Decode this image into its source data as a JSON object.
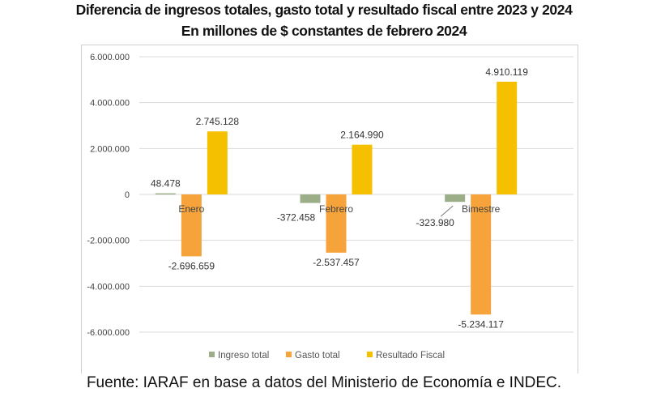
{
  "chart_data": {
    "type": "bar",
    "title": "Diferencia de ingresos totales, gasto total y resultado fiscal entre 2023 y 2024",
    "subtitle": "En millones de $ constantes de febrero 2024",
    "categories": [
      "Enero",
      "Febrero",
      "Bimestre"
    ],
    "series": [
      {
        "name": "Ingreso total",
        "color": "#9bae88",
        "values": [
          48478,
          -372458,
          -323980
        ],
        "labels": [
          "48.478",
          "-372.458",
          "-323.980"
        ]
      },
      {
        "name": "Gasto total",
        "color": "#f5a33a",
        "values": [
          -2696659,
          -2537457,
          -5234117
        ],
        "labels": [
          "-2.696.659",
          "-2.537.457",
          "-5.234.117"
        ]
      },
      {
        "name": "Resultado Fiscal",
        "color": "#f5c000",
        "values": [
          2745128,
          2164990,
          4910119
        ],
        "labels": [
          "2.745.128",
          "2.164.990",
          "4.910.119"
        ]
      }
    ],
    "ylim": [
      -6000000,
      6000000
    ],
    "yticks": [
      6000000,
      4000000,
      2000000,
      0,
      -2000000,
      -4000000,
      -6000000
    ],
    "ytick_labels": [
      "6.000.000",
      "4.000.000",
      "2.000.000",
      "0",
      "-2.000.000",
      "-4.000.000",
      "-6.000.000"
    ],
    "grid": true,
    "legend": "bottom"
  },
  "footer": "Fuente: IARAF en base a datos del Ministerio de Economía e INDEC."
}
